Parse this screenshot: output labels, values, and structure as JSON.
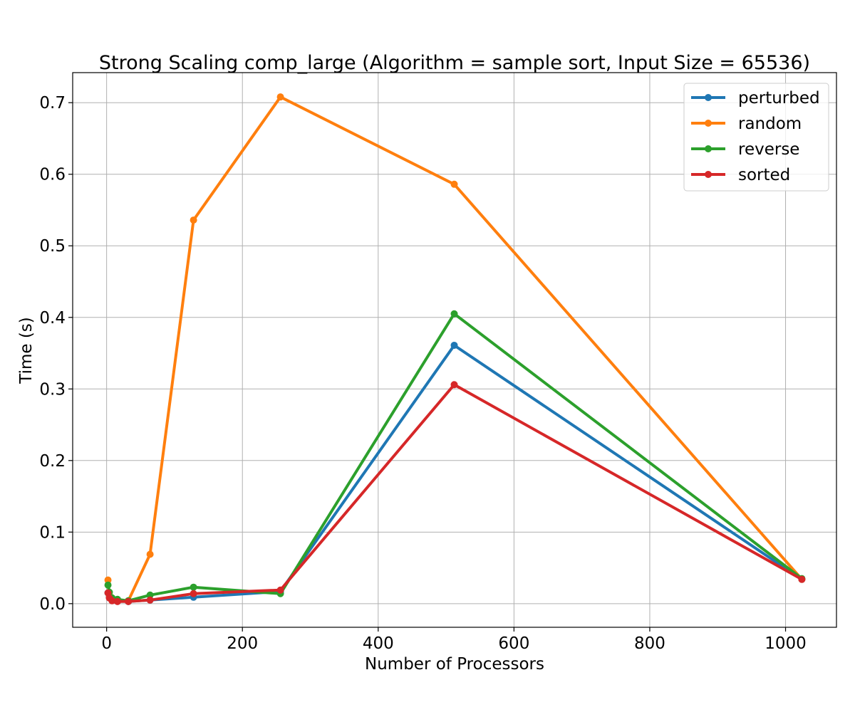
{
  "chart_data": {
    "type": "line",
    "title": "Strong Scaling comp_large (Algorithm = sample sort, Input Size = 65536)",
    "xlabel": "Number of Processors",
    "ylabel": "Time (s)",
    "xlim": [
      -50,
      1075
    ],
    "ylim": [
      -0.033,
      0.742
    ],
    "xticks": [
      0,
      200,
      400,
      600,
      800,
      1000
    ],
    "yticks": [
      0.0,
      0.1,
      0.2,
      0.3,
      0.4,
      0.5,
      0.6,
      0.7
    ],
    "xtick_labels": [
      "0",
      "200",
      "400",
      "600",
      "800",
      "1000"
    ],
    "ytick_labels": [
      "0.0",
      "0.1",
      "0.2",
      "0.3",
      "0.4",
      "0.5",
      "0.6",
      "0.7"
    ],
    "grid": true,
    "legend_position": "top-right",
    "x": [
      2,
      4,
      8,
      16,
      32,
      64,
      128,
      256,
      512,
      1024
    ],
    "series": [
      {
        "name": "perturbed",
        "color": "#1f77b4",
        "values": [
          0.015,
          0.009,
          0.005,
          0.004,
          0.003,
          0.005,
          0.009,
          0.017,
          0.361,
          0.034
        ]
      },
      {
        "name": "random",
        "color": "#ff7f0e",
        "values": [
          0.033,
          0.012,
          0.006,
          0.004,
          0.004,
          0.069,
          0.536,
          0.708,
          0.586,
          0.034
        ]
      },
      {
        "name": "reverse",
        "color": "#2ca02c",
        "values": [
          0.026,
          0.016,
          0.008,
          0.006,
          0.004,
          0.012,
          0.023,
          0.014,
          0.405,
          0.035
        ]
      },
      {
        "name": "sorted",
        "color": "#d62728",
        "values": [
          0.015,
          0.008,
          0.004,
          0.003,
          0.003,
          0.005,
          0.014,
          0.019,
          0.306,
          0.034
        ]
      }
    ]
  }
}
